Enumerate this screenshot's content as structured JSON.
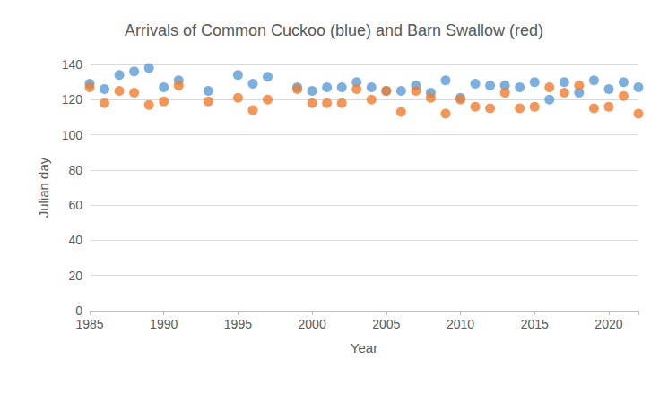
{
  "chart_data": {
    "type": "scatter",
    "title": "Arrivals of Common Cuckoo (blue) and Barn Swallow (red)",
    "x_label": "Year",
    "y_label": "Julian day",
    "x": [
      1985,
      1986,
      1987,
      1988,
      1989,
      1990,
      1991,
      1993,
      1995,
      1996,
      1997,
      1999,
      2000,
      2001,
      2002,
      2003,
      2004,
      2005,
      2006,
      2007,
      2008,
      2009,
      2010,
      2011,
      2012,
      2013,
      2014,
      2015,
      2016,
      2017,
      2018,
      2019,
      2020,
      2021,
      2022
    ],
    "series": [
      {
        "name": "Common Cuckoo",
        "color": "#5b9bd5",
        "marker": "circle",
        "values": [
          129,
          126,
          134,
          136,
          138,
          127,
          131,
          125,
          134,
          129,
          133,
          127,
          125,
          127,
          127,
          130,
          127,
          125,
          125,
          128,
          124,
          131,
          121,
          129,
          128,
          128,
          127,
          130,
          120,
          130,
          124,
          131,
          126,
          130,
          127
        ]
      },
      {
        "name": "Barn Swallow",
        "color": "#ed7d31",
        "marker": "circle",
        "values": [
          127,
          118,
          125,
          124,
          117,
          119,
          128,
          119,
          121,
          114,
          120,
          126,
          118,
          118,
          118,
          126,
          120,
          125,
          113,
          125,
          121,
          112,
          120,
          116,
          115,
          124,
          115,
          116,
          127,
          124,
          128,
          115,
          116,
          122,
          112
        ]
      }
    ],
    "xlim": [
      1985,
      2022
    ],
    "xticks": [
      1985,
      1990,
      1995,
      2000,
      2005,
      2010,
      2015,
      2020
    ],
    "ylim": [
      0,
      140
    ],
    "yticks": [
      0,
      20,
      40,
      60,
      80,
      100,
      120,
      140
    ],
    "grid": true
  }
}
